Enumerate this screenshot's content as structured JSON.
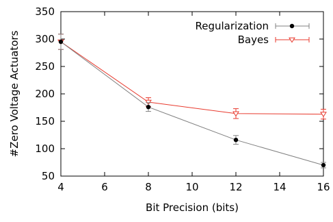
{
  "chart_data": {
    "type": "line",
    "xlabel": "Bit Precision (bits)",
    "ylabel": "#Zero Voltage Actuators",
    "xlim": [
      4,
      16
    ],
    "ylim": [
      50,
      350
    ],
    "xticks": [
      4,
      6,
      8,
      10,
      12,
      14,
      16
    ],
    "yticks": [
      50,
      100,
      150,
      200,
      250,
      300,
      350
    ],
    "grid": false,
    "legend_position": "top-right",
    "series": [
      {
        "name": "Regularization",
        "color": "#000000",
        "line_color": "#808080",
        "marker": "filled-circle",
        "x": [
          4,
          8,
          12,
          16
        ],
        "y": [
          295,
          176,
          116,
          70
        ],
        "error": [
          14,
          8,
          8,
          5
        ]
      },
      {
        "name": "Bayes",
        "color": "#e8392d",
        "line_color": "#e8392d",
        "marker": "open-triangle-down",
        "x": [
          4,
          8,
          12,
          16
        ],
        "y": [
          295,
          185,
          164,
          163
        ],
        "error": [
          14,
          8,
          9,
          9
        ]
      }
    ]
  }
}
